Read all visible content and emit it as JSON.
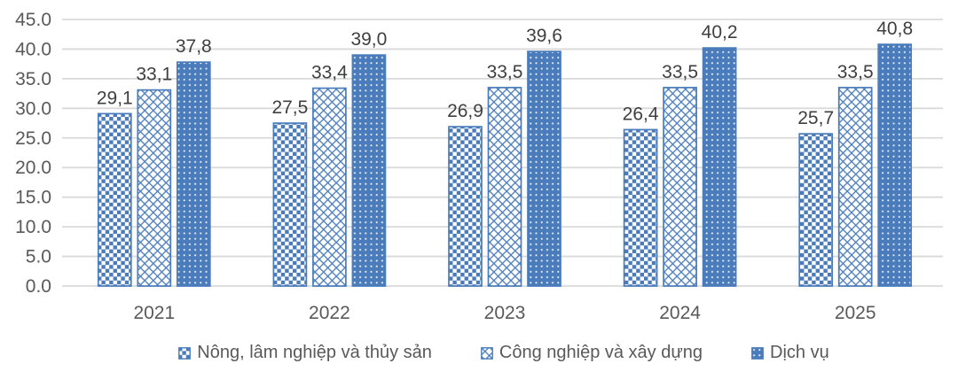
{
  "colors": {
    "bar_blue": "#4A7CBC",
    "grid": "#D9D9D9",
    "axis_text": "#595959",
    "value_text": "#3F3F3F",
    "background": "#FFFFFF"
  },
  "chart_data": {
    "type": "bar",
    "title": "",
    "xlabel": "",
    "ylabel": "",
    "categories": [
      "2021",
      "2022",
      "2023",
      "2024",
      "2025"
    ],
    "series": [
      {
        "name": "Nông, lâm nghiệp và thủy sản",
        "pattern": "checkerboard",
        "values": [
          29.1,
          27.5,
          26.9,
          26.4,
          25.7
        ],
        "value_labels": [
          "29,1",
          "27,5",
          "26,9",
          "26,4",
          "25,7"
        ]
      },
      {
        "name": "Công nghiệp và xây dựng",
        "pattern": "diagonal-weave",
        "values": [
          33.1,
          33.4,
          33.5,
          33.5,
          33.5
        ],
        "value_labels": [
          "33,1",
          "33,4",
          "33,5",
          "33,5",
          "33,5"
        ]
      },
      {
        "name": "Dịch vụ",
        "pattern": "dots",
        "values": [
          37.8,
          39.0,
          39.6,
          40.2,
          40.8
        ],
        "value_labels": [
          "37,8",
          "39,0",
          "39,6",
          "40,2",
          "40,8"
        ]
      }
    ],
    "y_axis": {
      "min": 0,
      "max": 45,
      "tick_step": 5,
      "tick_labels": [
        "0.0",
        "5.0",
        "10.0",
        "15.0",
        "20.0",
        "25.0",
        "30.0",
        "35.0",
        "40.0",
        "45.0"
      ]
    },
    "grid": true,
    "legend_position": "bottom"
  }
}
